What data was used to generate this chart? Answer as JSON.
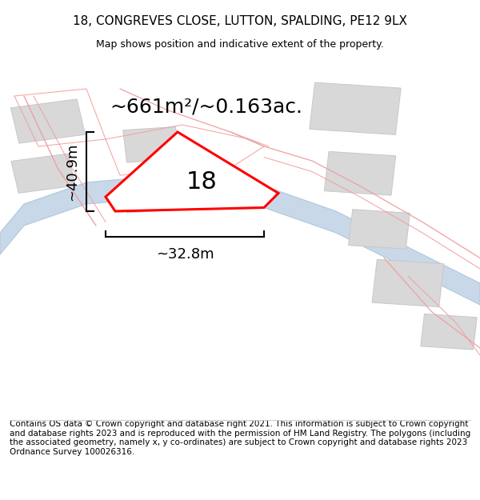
{
  "title": "18, CONGREVES CLOSE, LUTTON, SPALDING, PE12 9LX",
  "subtitle": "Map shows position and indicative extent of the property.",
  "area_label": "~661m²/~0.163ac.",
  "height_label": "~40.9m",
  "width_label": "~32.8m",
  "property_number": "18",
  "footer": "Contains OS data © Crown copyright and database right 2021. This information is subject to Crown copyright and database rights 2023 and is reproduced with the permission of HM Land Registry. The polygons (including the associated geometry, namely x, y co-ordinates) are subject to Crown copyright and database rights 2023 Ordnance Survey 100026316.",
  "bg_color": "#f5f4f2",
  "map_bg": "#f8f8f8",
  "road_blue_color": "#c8d8e8",
  "road_outline_color": "#b0c8dc",
  "property_color": "#ff0000",
  "pink_line_color": "#f0a0a0",
  "gray_block_color": "#d8d8d8",
  "gray_block_outline": "#c8c8c8",
  "title_fontsize": 11,
  "subtitle_fontsize": 9,
  "footer_fontsize": 7.5,
  "area_fontsize": 18,
  "dim_fontsize": 13,
  "number_fontsize": 22
}
